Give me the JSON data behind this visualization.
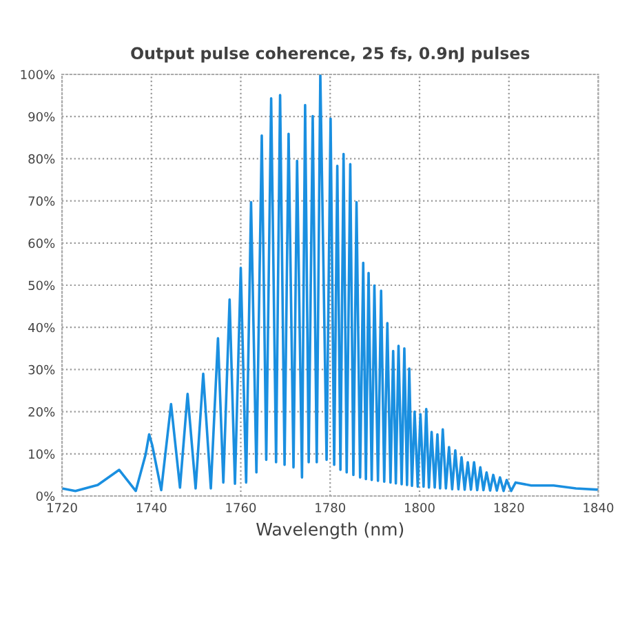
{
  "chart_data": {
    "type": "line",
    "title": "Output pulse coherence, 25 fs, 0.9nJ pulses",
    "xlabel": "Wavelength (nm)",
    "xlim": [
      1720,
      1840
    ],
    "xticks": [
      1720,
      1740,
      1760,
      1780,
      1800,
      1820,
      1840
    ],
    "ylim": [
      0,
      100
    ],
    "yticks": [
      {
        "value": 0,
        "label": "0%"
      },
      {
        "value": 10,
        "label": "10%"
      },
      {
        "value": 20,
        "label": "20%"
      },
      {
        "value": 30,
        "label": "30%"
      },
      {
        "value": 40,
        "label": "40%"
      },
      {
        "value": 50,
        "label": "50%"
      },
      {
        "value": 60,
        "label": "60%"
      },
      {
        "value": 70,
        "label": "70%"
      },
      {
        "value": 80,
        "label": "80%"
      },
      {
        "value": 90,
        "label": "90%"
      },
      {
        "value": 100,
        "label": "100%"
      }
    ],
    "grid": true,
    "legend": false,
    "marker": "none",
    "line_style": "solid",
    "series": [
      {
        "color": "#1a8fe0",
        "x": [
          1720,
          1723,
          1728,
          1732.8,
          1736.5,
          1738.7,
          1739.5,
          1740.2,
          1742.2,
          1744.4,
          1746.4,
          1748.1,
          1749.9,
          1751.6,
          1753.3,
          1754.9,
          1756.1,
          1757.5,
          1758.7,
          1760,
          1761.2,
          1762.3,
          1763.5,
          1764.7,
          1765.7,
          1766.8,
          1767.9,
          1768.8,
          1769.8,
          1770.7,
          1771.8,
          1772.6,
          1773.7,
          1774.4,
          1775.2,
          1776.1,
          1777,
          1777.8,
          1779.2,
          1780.1,
          1780.9,
          1781.6,
          1782.3,
          1783,
          1783.7,
          1784.5,
          1785.2,
          1785.9,
          1786.7,
          1787.4,
          1788,
          1788.6,
          1789.3,
          1789.9,
          1790.7,
          1791.4,
          1792.1,
          1792.8,
          1793.5,
          1794.1,
          1794.7,
          1795.3,
          1796,
          1796.6,
          1797.2,
          1797.7,
          1798.3,
          1798.9,
          1799.6,
          1800.2,
          1800.9,
          1801.5,
          1802.1,
          1802.7,
          1803.4,
          1804,
          1804.6,
          1805.2,
          1805.9,
          1806.6,
          1807.3,
          1808,
          1808.7,
          1809.4,
          1810.1,
          1810.8,
          1811.5,
          1812.2,
          1812.9,
          1813.6,
          1814.3,
          1815,
          1815.8,
          1816.5,
          1817.3,
          1818,
          1818.8,
          1819.5,
          1820.5,
          1821.5,
          1825,
          1830,
          1835,
          1840
        ],
        "values": [
          1.8,
          1.2,
          2.6,
          6.2,
          1.2,
          9.8,
          14.6,
          12,
          1.4,
          21.8,
          2,
          24.2,
          1.8,
          29,
          1.8,
          37.4,
          3.2,
          46.6,
          2.9,
          54.1,
          3.2,
          69.7,
          5.6,
          85.5,
          8.6,
          94.3,
          8,
          95.1,
          7.4,
          85.9,
          6.8,
          79.5,
          4.4,
          92.7,
          8,
          90.1,
          8,
          100,
          8.6,
          89.5,
          7.4,
          78.3,
          6.2,
          81.1,
          5.6,
          78.7,
          5,
          69.7,
          4.4,
          55.3,
          4,
          52.9,
          3.8,
          49.9,
          3.6,
          48.7,
          3.4,
          41,
          3.2,
          34.4,
          3,
          35.6,
          2.8,
          35,
          2.6,
          30.2,
          2.4,
          20,
          2.2,
          19.4,
          2.2,
          20.6,
          2,
          15.2,
          2,
          14.6,
          1.8,
          15.8,
          1.8,
          11.6,
          1.6,
          10.8,
          1.6,
          9.2,
          1.5,
          8,
          1.5,
          8,
          1.4,
          6.8,
          1.4,
          5.6,
          1.3,
          5,
          1.3,
          4.4,
          1.2,
          3.8,
          1.2,
          3.2,
          2.5,
          2.5,
          1.8,
          1.5
        ]
      }
    ]
  }
}
